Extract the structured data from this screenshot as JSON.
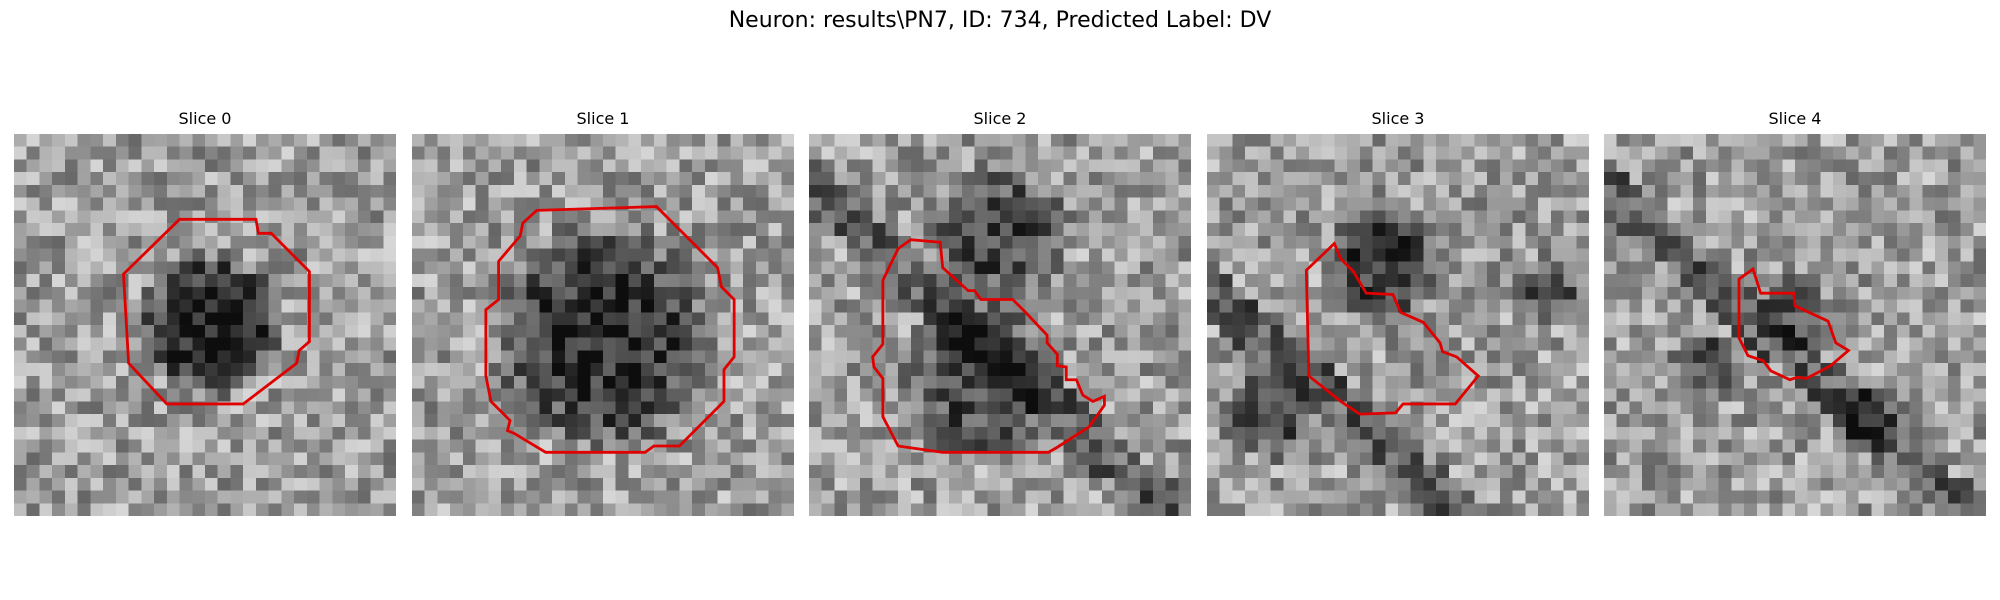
{
  "figure": {
    "title": "Neuron: results\\PN7, ID: 734, Predicted Label: DV"
  },
  "panels": [
    {
      "title": "Slice 0",
      "contour_color": "#e00000",
      "image_description": "grayscale microscopy slice"
    },
    {
      "title": "Slice 1",
      "contour_color": "#e00000",
      "image_description": "grayscale microscopy slice"
    },
    {
      "title": "Slice 2",
      "contour_color": "#e00000",
      "image_description": "grayscale microscopy slice"
    },
    {
      "title": "Slice 3",
      "contour_color": "#e00000",
      "image_description": "grayscale microscopy slice"
    },
    {
      "title": "Slice 4",
      "contour_color": "#e00000",
      "image_description": "grayscale microscopy slice"
    }
  ]
}
